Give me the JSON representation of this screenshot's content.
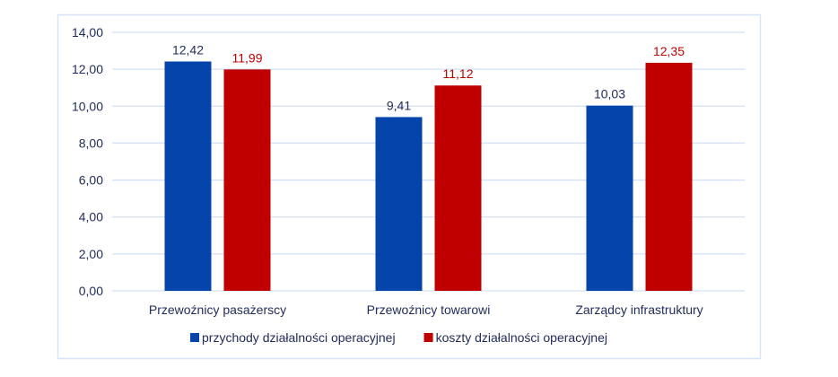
{
  "chart_data": {
    "type": "bar",
    "title": "",
    "xlabel": "",
    "ylabel": "",
    "ylim": [
      0,
      14
    ],
    "yticks": [
      "0,00",
      "2,00",
      "4,00",
      "6,00",
      "8,00",
      "10,00",
      "12,00",
      "14,00"
    ],
    "grid": true,
    "legend_position": "bottom",
    "categories": [
      "Przewoźnicy pasażerscy",
      "Przewoźnicy towarowi",
      "Zarządcy infrastruktury"
    ],
    "series": [
      {
        "name": "przychody działalności operacyjnej",
        "color": "#0544AB",
        "label_color": "#1F2A5C",
        "values": [
          12.42,
          9.41,
          10.03
        ],
        "labels": [
          "12,42",
          "9,41",
          "10,03"
        ]
      },
      {
        "name": "koszty działalności operacyjnej",
        "color": "#C00000",
        "label_color": "#C00000",
        "values": [
          11.99,
          11.12,
          12.35
        ],
        "labels": [
          "11,99",
          "11,12",
          "12,35"
        ]
      }
    ]
  }
}
